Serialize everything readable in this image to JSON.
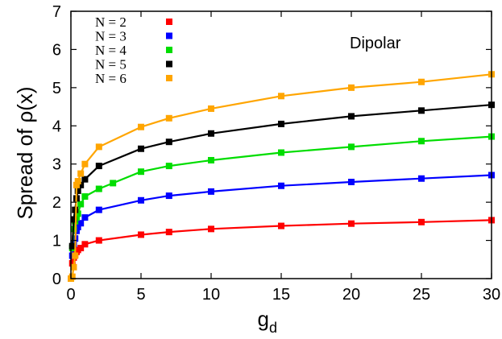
{
  "chart_data": {
    "type": "line",
    "ylabel": "Spread of ρ(x)",
    "xlabel_main": "g",
    "xlabel_sub": "d",
    "annotation": "Dipolar",
    "xlim": [
      0,
      30
    ],
    "ylim": [
      0,
      7
    ],
    "x_ticks": [
      0,
      5,
      10,
      15,
      20,
      25,
      30
    ],
    "y_ticks": [
      0,
      1,
      2,
      3,
      4,
      5,
      6,
      7
    ],
    "legend_position": "top-left",
    "grid": false,
    "series": [
      {
        "name": "N = 2",
        "color": "#ff0000",
        "x": [
          0.0,
          0.1,
          0.2,
          0.3,
          0.4,
          0.5,
          0.7,
          1,
          2,
          5,
          7,
          10,
          15,
          20,
          25,
          30
        ],
        "y": [
          0.0,
          0.4,
          0.55,
          0.63,
          0.7,
          0.75,
          0.8,
          0.9,
          1.0,
          1.15,
          1.22,
          1.3,
          1.38,
          1.44,
          1.48,
          1.53
        ]
      },
      {
        "name": "N = 3",
        "color": "#0000ff",
        "x": [
          0.0,
          0.1,
          0.2,
          0.3,
          0.4,
          0.5,
          0.7,
          1,
          2,
          5,
          7,
          10,
          15,
          20,
          25,
          30
        ],
        "y": [
          0.0,
          0.6,
          0.9,
          1.05,
          1.25,
          1.35,
          1.45,
          1.6,
          1.8,
          2.05,
          2.17,
          2.28,
          2.43,
          2.53,
          2.62,
          2.71
        ]
      },
      {
        "name": "N = 4",
        "color": "#00dd00",
        "x": [
          0.0,
          0.1,
          0.2,
          0.3,
          0.4,
          0.5,
          0.7,
          1,
          2,
          3,
          5,
          7,
          10,
          15,
          20,
          25,
          30
        ],
        "y": [
          0.0,
          0.8,
          1.3,
          1.5,
          1.6,
          1.7,
          1.95,
          2.15,
          2.35,
          2.5,
          2.8,
          2.95,
          3.1,
          3.3,
          3.45,
          3.6,
          3.72
        ]
      },
      {
        "name": "N = 5",
        "color": "#000000",
        "x": [
          0.0,
          0.1,
          0.2,
          0.3,
          0.4,
          0.5,
          0.7,
          1,
          2,
          5,
          7,
          10,
          15,
          20,
          25,
          30
        ],
        "y": [
          0.0,
          0.85,
          1.55,
          1.8,
          2.1,
          2.3,
          2.45,
          2.6,
          2.95,
          3.4,
          3.58,
          3.8,
          4.05,
          4.25,
          4.4,
          4.55
        ]
      },
      {
        "name": "N = 6",
        "color": "#ffa500",
        "x": [
          0.0,
          0.1,
          0.2,
          0.3,
          0.4,
          0.5,
          0.7,
          1,
          2,
          5,
          7,
          10,
          15,
          20,
          25,
          30
        ],
        "y": [
          0.0,
          0.05,
          0.3,
          0.6,
          2.45,
          2.55,
          2.75,
          3.0,
          3.45,
          3.97,
          4.2,
          4.45,
          4.78,
          5.0,
          5.15,
          5.35
        ]
      }
    ]
  }
}
